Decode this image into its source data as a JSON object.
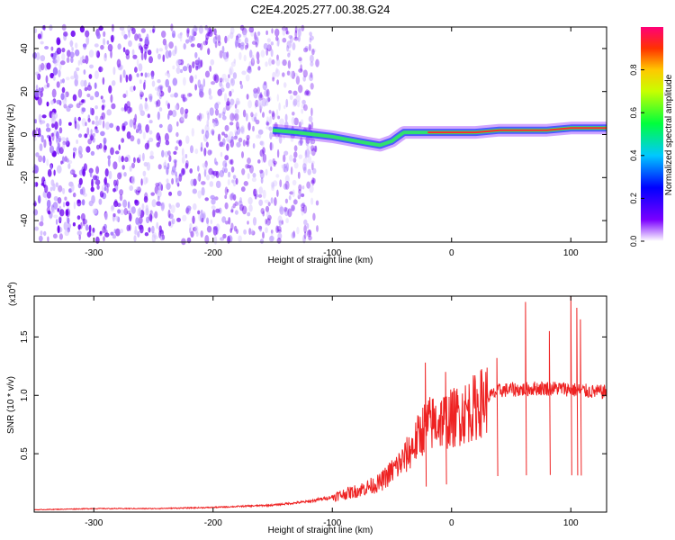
{
  "figure": {
    "title": "C2E4.2025.277.00.38.G24"
  },
  "chart_data": [
    {
      "type": "heatmap",
      "xlabel": "Height of straight line (km)",
      "ylabel": "Frequency (Hz)",
      "xlim": [
        -350,
        130
      ],
      "ylim": [
        -50,
        50
      ],
      "x_ticks": [
        -300,
        -200,
        -100,
        0,
        100
      ],
      "y_ticks": [
        -40,
        -20,
        0,
        20,
        40
      ],
      "colorbar": {
        "label": "Normalized spectral amplitude",
        "range": [
          0,
          1
        ],
        "ticks": [
          "0.0",
          "0.2",
          "0.4",
          "0.6",
          "0.8"
        ],
        "colors": [
          "#ffffff",
          "#7a00ff",
          "#0000ff",
          "#00c8ff",
          "#00ff3c",
          "#c8ff00",
          "#ffc800",
          "#ff3200",
          "#ff0078"
        ]
      },
      "noise_region_x": [
        -350,
        -120
      ],
      "signal_trace": {
        "x": [
          -150,
          -130,
          -115,
          -100,
          -90,
          -80,
          -70,
          -60,
          -50,
          -45,
          -40,
          -30,
          -20,
          -10,
          0,
          20,
          40,
          60,
          80,
          100,
          120,
          130
        ],
        "y": [
          2,
          1,
          0,
          -1,
          -2,
          -3,
          -4,
          -5,
          -3,
          -1,
          1,
          1,
          1,
          1,
          1,
          1,
          2,
          2,
          2,
          3,
          3,
          3
        ]
      }
    },
    {
      "type": "line",
      "xlabel": "Height of straight line (km)",
      "ylabel": "SNR (10 * v/v)",
      "y_scale_label": "(x10",
      "y_scale_exp": "4",
      "close_paren": ")",
      "xlim": [
        -350,
        130
      ],
      "ylim": [
        0,
        18500
      ],
      "x_ticks": [
        -300,
        -200,
        -100,
        0,
        100
      ],
      "y_tick_values": [
        5000,
        10000,
        15000
      ],
      "y_tick_labels": [
        "0.5",
        "1.0",
        "1.5"
      ],
      "series": [
        {
          "name": "SNR",
          "color": "#ee2222",
          "x": [
            -350,
            -300,
            -250,
            -200,
            -150,
            -120,
            -100,
            -80,
            -60,
            -50,
            -40,
            -30,
            -25,
            -20,
            -10,
            0,
            10,
            20,
            30,
            40,
            50,
            60,
            70,
            80,
            90,
            100,
            110,
            120,
            130
          ],
          "y": [
            200,
            300,
            300,
            400,
            600,
            900,
            1300,
            1800,
            2500,
            3500,
            4500,
            6000,
            7000,
            7500,
            7800,
            8000,
            8500,
            9000,
            9800,
            10400,
            10500,
            10500,
            10600,
            10600,
            10600,
            10500,
            10400,
            10300,
            10300
          ]
        }
      ],
      "spikes": {
        "x": [
          -22,
          -5,
          38,
          62,
          82,
          100,
          105,
          108
        ],
        "y": [
          12800,
          12000,
          13200,
          18000,
          15500,
          18500,
          17500,
          16500
        ]
      }
    }
  ]
}
